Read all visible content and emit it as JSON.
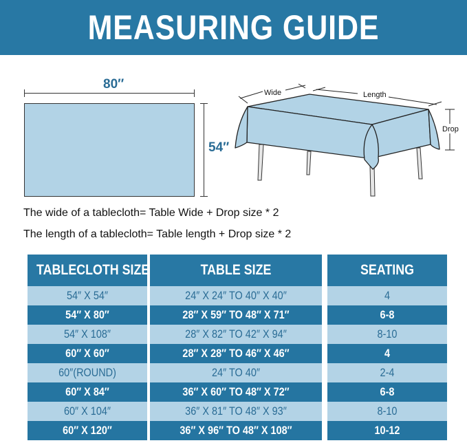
{
  "title": "MEASURING GUIDE",
  "diagram": {
    "flat_width": "80″",
    "flat_height": "54″",
    "wide_label": "Wide",
    "length_label": "Length",
    "drop_label": "Drop"
  },
  "formulas": [
    "The wide of a tablecloth= Table Wide + Drop size * 2",
    "The length of a tablecloth= Table length + Drop size * 2"
  ],
  "colors": {
    "brand": "#2878a4",
    "light": "#b3d3e6",
    "text_light": "#2a6c95"
  },
  "table": {
    "headers": [
      "TABLECLOTH SIZE",
      "TABLE SIZE",
      "SEATING"
    ],
    "rows": [
      [
        "54″ X 54″",
        "24″ X 24″ TO 40″ X 40″",
        "4"
      ],
      [
        "54″ X 80″",
        "28″ X 59″ TO 48″ X 71″",
        "6-8"
      ],
      [
        "54″ X 108″",
        "28″ X 82″ TO 42″ X 94″",
        "8-10"
      ],
      [
        "60″ X 60″",
        "28″ X 28″ TO 46″ X 46″",
        "4"
      ],
      [
        "60″(ROUND)",
        "24″ TO 40″",
        "2-4"
      ],
      [
        "60″ X 84″",
        "36″ X 60″ TO 48″ X 72″",
        "6-8"
      ],
      [
        "60″ X 104″",
        "36″ X 81″ TO 48″ X 93″",
        "8-10"
      ],
      [
        "60″ X 120″",
        "36″ X 96″ TO 48″ X 108″",
        "10-12"
      ]
    ]
  }
}
